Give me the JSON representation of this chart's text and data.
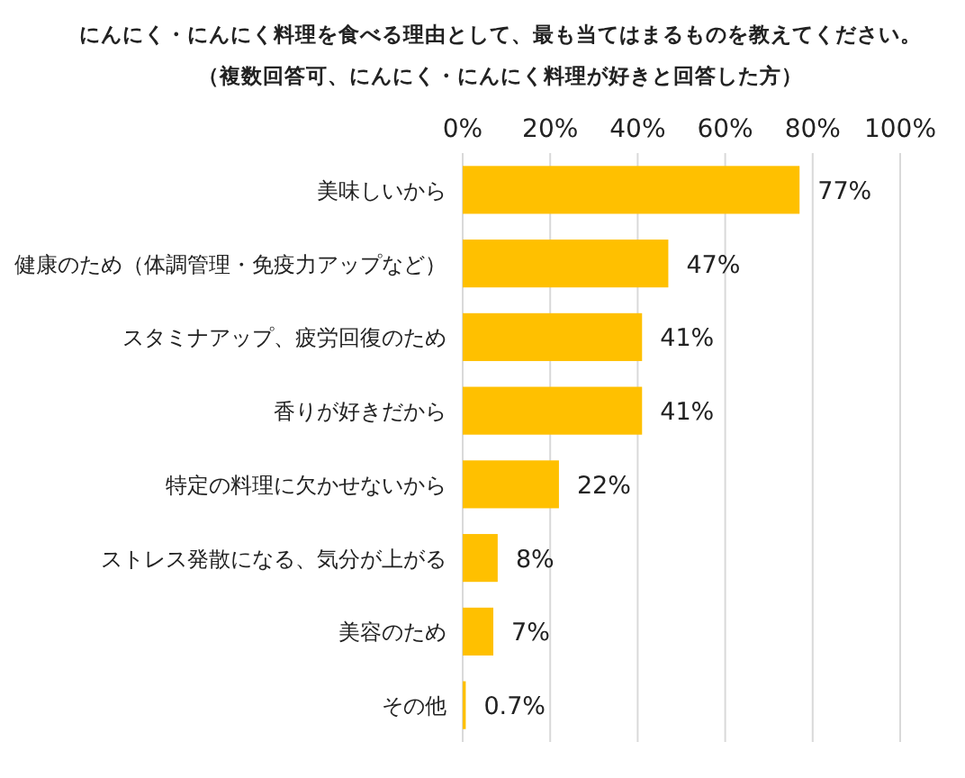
{
  "chart_data": {
    "type": "bar",
    "orientation": "horizontal",
    "title": "にんにく・にんにく料理を食べる理由として、最も当てはまるものを教えてください。",
    "subtitle": "（複数回答可、にんにく・にんにく料理が好きと回答した方）",
    "categories": [
      "美味しいから",
      "健康のため（体調管理・免疫力アップなど）",
      "スタミナアップ、疲労回復のため",
      "香りが好きだから",
      "特定の料理に欠かせないから",
      "ストレス発散になる、気分が上がる",
      "美容のため",
      "その他"
    ],
    "values": [
      77,
      47,
      41,
      41,
      22,
      8,
      7,
      0.7
    ],
    "value_labels": [
      "77%",
      "47%",
      "41%",
      "41%",
      "22%",
      "8%",
      "7%",
      "0.7%"
    ],
    "color": "#ffc000",
    "xlim": [
      0,
      100
    ],
    "xticks": [
      {
        "value": 0,
        "label": "0%"
      },
      {
        "value": 20,
        "label": "20%"
      },
      {
        "value": 40,
        "label": "40%"
      },
      {
        "value": 60,
        "label": "60%"
      },
      {
        "value": 80,
        "label": "80%"
      },
      {
        "value": 100,
        "label": "100%"
      }
    ],
    "grid": "x"
  }
}
